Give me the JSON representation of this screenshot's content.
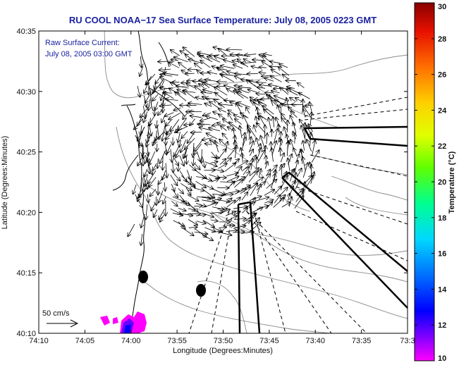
{
  "title": "RU COOL  NOAA−17  Sea Surface Temperature:  July 08, 2005 0223 GMT",
  "annotation": {
    "line1": "Raw Surface Current:",
    "line2": "July 08, 2005 03:00 GMT"
  },
  "axes": {
    "xlabel": "Longitude (Degrees:Minutes)",
    "ylabel": "Latitude (Degrees:Minutes)",
    "xticks": [
      "74:10",
      "74:05",
      "74:00",
      "73:55",
      "73:50",
      "73:45",
      "73:40",
      "73:35",
      "73:3"
    ],
    "yticks": [
      "40:35",
      "40:30",
      "40:25",
      "40:20",
      "40:15",
      "40:10"
    ]
  },
  "scale_label": "50 cm/s",
  "colorbar": {
    "label": "Temperature (°C)",
    "ticks": [
      "30",
      "28",
      "26",
      "24",
      "22",
      "20",
      "18",
      "16",
      "14",
      "12",
      "10"
    ],
    "colors": [
      "#ff00ff",
      "#6a00ff",
      "#0000ff",
      "#0080ff",
      "#00e0ff",
      "#00ff80",
      "#80ff00",
      "#ffff00",
      "#ffb000",
      "#ff5000",
      "#e00000",
      "#800000"
    ]
  },
  "chart_data": {
    "type": "map",
    "xlabel": "Longitude (Degrees:Minutes)",
    "ylabel": "Latitude (Degrees:Minutes)",
    "xlim": [
      "74:10",
      "73:30"
    ],
    "ylim": [
      "40:10",
      "40:35"
    ],
    "colorbar_range": [
      10,
      30
    ],
    "colorbar_unit": "Temperature (°C)",
    "markers": [
      {
        "lon": "73:59",
        "lat": "40:14.6"
      },
      {
        "lon": "73:52",
        "lat": "40:13.5"
      }
    ]
  }
}
